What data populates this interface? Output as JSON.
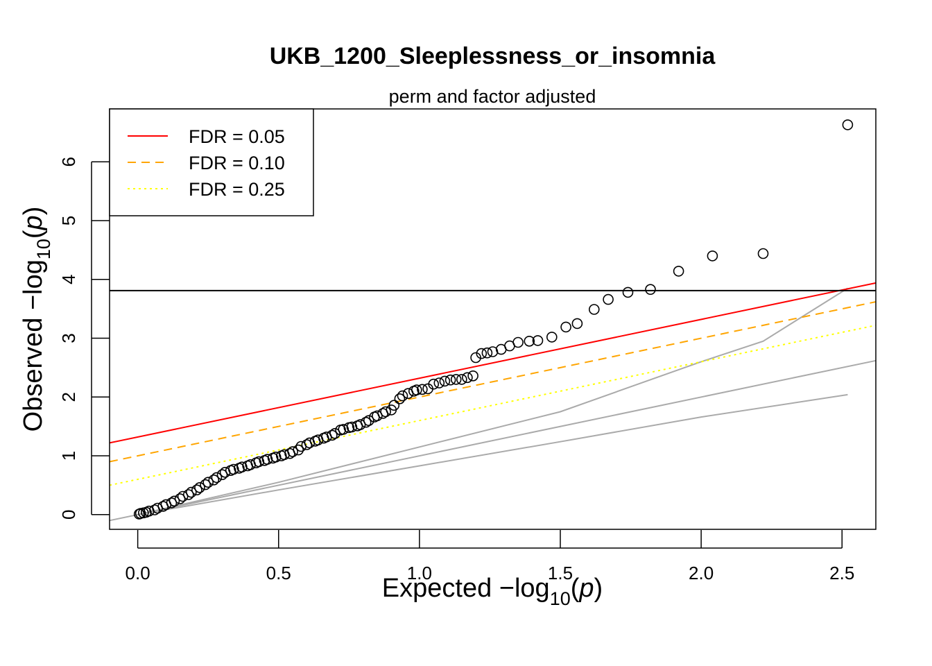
{
  "chart_data": {
    "type": "scatter",
    "title": "UKB_1200_Sleeplessness_or_insomnia",
    "subtitle": "perm and factor adjusted",
    "xlabel_prefix": "Expected  −log",
    "ylabel_prefix": "Observed  −log",
    "log_base": "10",
    "log_arg": "p",
    "xlim": [
      -0.1,
      2.62
    ],
    "ylim": [
      -0.25,
      6.9
    ],
    "x_ticks": [
      0.0,
      0.5,
      1.0,
      1.5,
      2.0,
      2.5
    ],
    "x_tick_labels": [
      "0.0",
      "0.5",
      "1.0",
      "1.5",
      "2.0",
      "2.5"
    ],
    "y_ticks": [
      0,
      1,
      2,
      3,
      4,
      5,
      6
    ],
    "y_tick_labels": [
      "0",
      "1",
      "2",
      "3",
      "4",
      "5",
      "6"
    ],
    "threshold_line": 3.81,
    "legend": {
      "position": "top-left",
      "entries": [
        {
          "label": "FDR = 0.05",
          "color": "#ff0000",
          "style": "solid"
        },
        {
          "label": "FDR = 0.10",
          "color": "#ffa500",
          "style": "dashed"
        },
        {
          "label": "FDR = 0.25",
          "color": "#ffff00",
          "style": "dotted"
        }
      ]
    },
    "fdr_lines": [
      {
        "name": "FDR = 0.05",
        "intercept": 1.32,
        "slope": 1.0,
        "color": "#ff0000",
        "style": "solid"
      },
      {
        "name": "FDR = 0.10",
        "intercept": 1.0,
        "slope": 1.0,
        "color": "#ffa500",
        "style": "dashed"
      },
      {
        "name": "FDR = 0.25",
        "intercept": 0.6,
        "slope": 1.0,
        "color": "#ffff00",
        "style": "dotted"
      }
    ],
    "reference_lines": [
      {
        "color": "#aaaaaa",
        "points": [
          [
            -0.1,
            -0.1
          ],
          [
            2.62,
            2.62
          ]
        ]
      },
      {
        "color": "#aaaaaa",
        "points": [
          [
            0.0,
            0.0
          ],
          [
            0.5,
            0.55
          ],
          [
            1.0,
            1.15
          ],
          [
            1.5,
            1.75
          ],
          [
            2.0,
            2.6
          ],
          [
            2.22,
            2.95
          ],
          [
            2.52,
            3.85
          ]
        ]
      },
      {
        "color": "#aaaaaa",
        "points": [
          [
            0.0,
            0.0
          ],
          [
            0.5,
            0.42
          ],
          [
            1.0,
            0.83
          ],
          [
            1.5,
            1.24
          ],
          [
            2.0,
            1.66
          ],
          [
            2.52,
            2.04
          ]
        ]
      }
    ],
    "points": [
      [
        2.52,
        6.63
      ],
      [
        2.22,
        4.44
      ],
      [
        2.04,
        4.4
      ],
      [
        1.92,
        4.14
      ],
      [
        1.82,
        3.83
      ],
      [
        1.74,
        3.78
      ],
      [
        1.67,
        3.66
      ],
      [
        1.62,
        3.49
      ],
      [
        1.56,
        3.25
      ],
      [
        1.52,
        3.19
      ],
      [
        1.47,
        3.02
      ],
      [
        1.42,
        2.96
      ],
      [
        1.39,
        2.95
      ],
      [
        1.35,
        2.93
      ],
      [
        1.32,
        2.87
      ],
      [
        1.29,
        2.81
      ],
      [
        1.26,
        2.77
      ],
      [
        1.24,
        2.75
      ],
      [
        1.22,
        2.74
      ],
      [
        1.2,
        2.67
      ],
      [
        1.19,
        2.36
      ],
      [
        1.17,
        2.33
      ],
      [
        1.15,
        2.3
      ],
      [
        1.13,
        2.3
      ],
      [
        1.11,
        2.29
      ],
      [
        1.09,
        2.27
      ],
      [
        1.07,
        2.24
      ],
      [
        1.05,
        2.22
      ],
      [
        1.03,
        2.14
      ],
      [
        1.01,
        2.13
      ],
      [
        0.99,
        2.12
      ],
      [
        0.98,
        2.1
      ],
      [
        0.96,
        2.06
      ],
      [
        0.94,
        2.02
      ],
      [
        0.93,
        1.97
      ],
      [
        0.91,
        1.86
      ],
      [
        0.9,
        1.78
      ],
      [
        0.88,
        1.75
      ],
      [
        0.87,
        1.72
      ],
      [
        0.85,
        1.68
      ],
      [
        0.84,
        1.66
      ],
      [
        0.82,
        1.6
      ],
      [
        0.81,
        1.57
      ],
      [
        0.79,
        1.53
      ],
      [
        0.78,
        1.51
      ],
      [
        0.76,
        1.49
      ],
      [
        0.75,
        1.48
      ],
      [
        0.73,
        1.45
      ],
      [
        0.72,
        1.44
      ],
      [
        0.7,
        1.38
      ],
      [
        0.69,
        1.35
      ],
      [
        0.67,
        1.32
      ],
      [
        0.66,
        1.3
      ],
      [
        0.64,
        1.27
      ],
      [
        0.63,
        1.25
      ],
      [
        0.61,
        1.22
      ],
      [
        0.6,
        1.19
      ],
      [
        0.58,
        1.16
      ],
      [
        0.57,
        1.1
      ],
      [
        0.55,
        1.07
      ],
      [
        0.54,
        1.04
      ],
      [
        0.52,
        1.02
      ],
      [
        0.51,
        1.0
      ],
      [
        0.49,
        0.98
      ],
      [
        0.48,
        0.96
      ],
      [
        0.46,
        0.94
      ],
      [
        0.45,
        0.92
      ],
      [
        0.43,
        0.9
      ],
      [
        0.42,
        0.88
      ],
      [
        0.4,
        0.85
      ],
      [
        0.39,
        0.83
      ],
      [
        0.37,
        0.81
      ],
      [
        0.36,
        0.79
      ],
      [
        0.34,
        0.77
      ],
      [
        0.33,
        0.75
      ],
      [
        0.31,
        0.72
      ],
      [
        0.3,
        0.68
      ],
      [
        0.28,
        0.63
      ],
      [
        0.27,
        0.59
      ],
      [
        0.25,
        0.55
      ],
      [
        0.24,
        0.51
      ],
      [
        0.22,
        0.46
      ],
      [
        0.21,
        0.42
      ],
      [
        0.19,
        0.38
      ],
      [
        0.18,
        0.34
      ],
      [
        0.16,
        0.31
      ],
      [
        0.15,
        0.27
      ],
      [
        0.13,
        0.23
      ],
      [
        0.12,
        0.2
      ],
      [
        0.1,
        0.17
      ],
      [
        0.09,
        0.14
      ],
      [
        0.07,
        0.11
      ],
      [
        0.06,
        0.08
      ],
      [
        0.04,
        0.06
      ],
      [
        0.03,
        0.04
      ],
      [
        0.02,
        0.03
      ],
      [
        0.01,
        0.02
      ],
      [
        0.005,
        0.01
      ]
    ]
  }
}
